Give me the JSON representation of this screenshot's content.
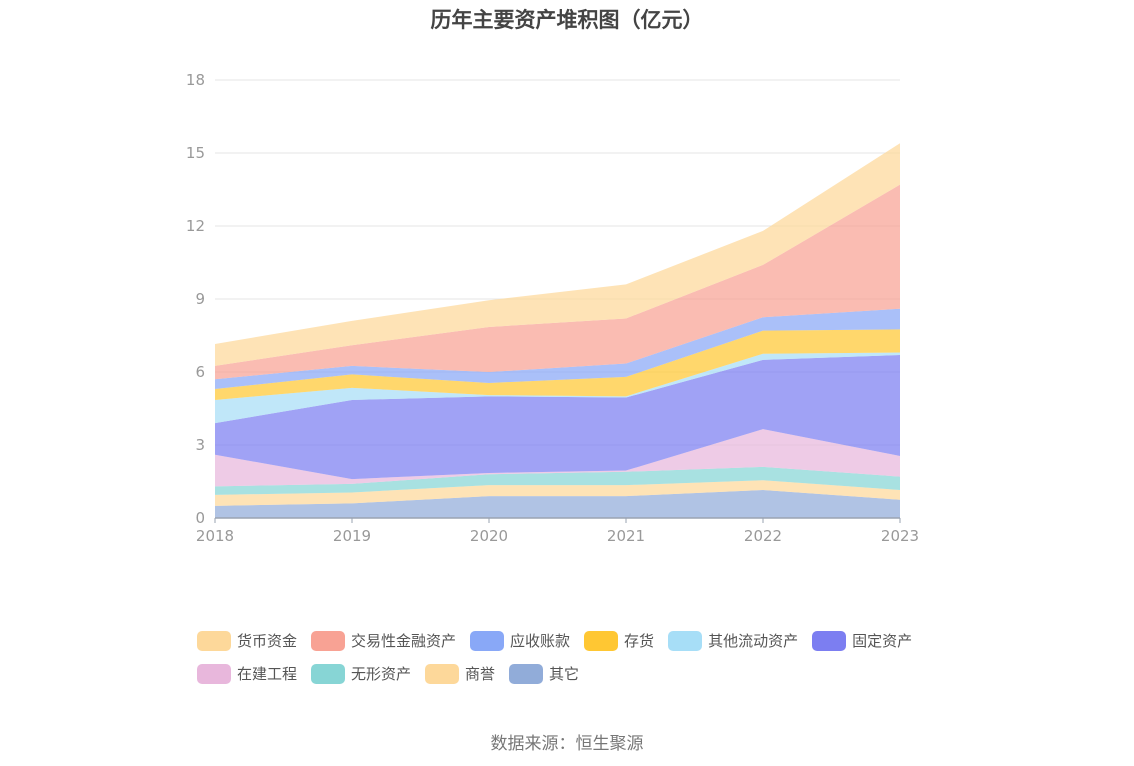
{
  "chart_data": {
    "type": "area",
    "title": "历年主要资产堆积图（亿元）",
    "categories": [
      "2018",
      "2019",
      "2020",
      "2021",
      "2022",
      "2023"
    ],
    "ylim": [
      0,
      18
    ],
    "yticks": [
      "0",
      "3",
      "6",
      "9",
      "12",
      "15",
      "18"
    ],
    "grid": true,
    "legend_position": "bottom",
    "series": [
      {
        "name": "其它",
        "color": "#91acd9",
        "values": [
          0.5,
          0.6,
          0.9,
          0.9,
          1.15,
          0.75
        ]
      },
      {
        "name": "商誉",
        "color": "#fdd89a",
        "values": [
          0.45,
          0.45,
          0.45,
          0.45,
          0.4,
          0.4
        ]
      },
      {
        "name": "无形资产",
        "color": "#87d5d5",
        "values": [
          0.35,
          0.35,
          0.45,
          0.55,
          0.55,
          0.55
        ]
      },
      {
        "name": "在建工程",
        "color": "#e8b7dc",
        "values": [
          1.3,
          0.2,
          0.05,
          0.05,
          1.55,
          0.85
        ]
      },
      {
        "name": "固定资产",
        "color": "#7c7ef1",
        "values": [
          1.3,
          3.25,
          3.15,
          3.0,
          2.85,
          4.15
        ]
      },
      {
        "name": "其他流动资产",
        "color": "#a7def7",
        "values": [
          0.95,
          0.5,
          0.05,
          0.05,
          0.25,
          0.1
        ]
      },
      {
        "name": "存货",
        "color": "#ffc733",
        "values": [
          0.45,
          0.55,
          0.5,
          0.8,
          0.95,
          0.95
        ]
      },
      {
        "name": "应收账款",
        "color": "#89a8f7",
        "values": [
          0.4,
          0.35,
          0.45,
          0.55,
          0.55,
          0.85
        ]
      },
      {
        "name": "交易性金融资产",
        "color": "#f8a294",
        "values": [
          0.55,
          0.85,
          1.85,
          1.85,
          2.15,
          5.1
        ]
      },
      {
        "name": "货币资金",
        "color": "#fdd89a",
        "values": [
          0.9,
          1.0,
          1.1,
          1.4,
          1.4,
          1.7
        ]
      }
    ]
  },
  "legend_rows": [
    [
      "货币资金",
      "交易性金融资产",
      "应收账款",
      "存货",
      "其他流动资产",
      "固定资产"
    ],
    [
      "在建工程",
      "无形资产",
      "商誉",
      "其它"
    ]
  ],
  "source_note": "数据来源：恒生聚源"
}
